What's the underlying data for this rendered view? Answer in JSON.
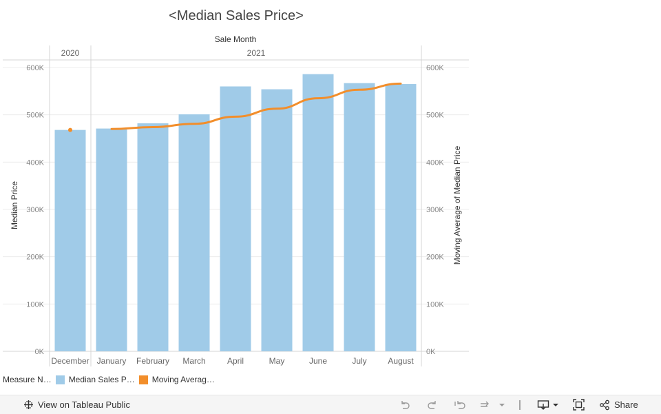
{
  "title": "<Median Sales Price>",
  "legend": {
    "title": "Measure N…",
    "items": [
      {
        "label": "Median Sales P…",
        "color": "#a0cbe8"
      },
      {
        "label": "Moving Averag…",
        "color": "#f28e2b"
      }
    ]
  },
  "chart_data": {
    "type": "bar",
    "column_header": "Sale Month",
    "year_headers": [
      {
        "label": "2020",
        "span": 1
      },
      {
        "label": "2021",
        "span": 8
      }
    ],
    "categories": [
      "December",
      "January",
      "February",
      "March",
      "April",
      "May",
      "June",
      "July",
      "August"
    ],
    "series": [
      {
        "name": "Median Sales P…",
        "type": "bar",
        "color": "#a0cbe8",
        "values": [
          468000,
          471000,
          482000,
          501000,
          560000,
          554000,
          586000,
          567000,
          565000
        ]
      },
      {
        "name": "Moving Averag…",
        "type": "line",
        "color": "#f28e2b",
        "values": [
          468000,
          470000,
          474000,
          481000,
          496000,
          513000,
          535000,
          553000,
          566000
        ]
      }
    ],
    "ylabel": "Median Price",
    "y2label": "Moving Average of Median Price",
    "ylim": [
      0,
      600000
    ],
    "yticks": [
      0,
      100000,
      200000,
      300000,
      400000,
      500000,
      600000
    ],
    "ytick_labels": [
      "0K",
      "100K",
      "200K",
      "300K",
      "400K",
      "500K",
      "600K"
    ],
    "grid": true
  },
  "toolbar": {
    "view_label": "View on Tableau Public",
    "share_label": "Share"
  }
}
